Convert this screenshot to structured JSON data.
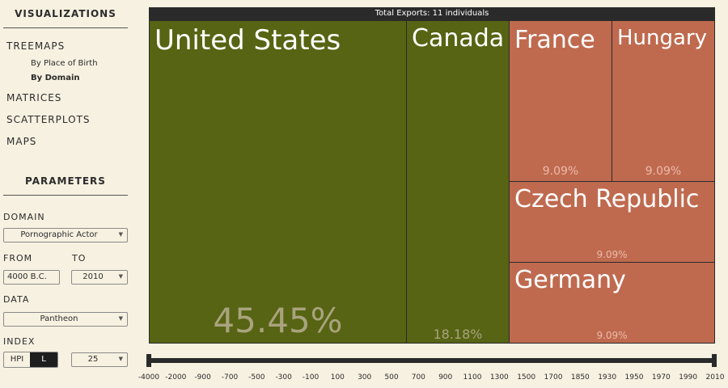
{
  "sidebar": {
    "visualizations_title": "VISUALIZATIONS",
    "nav": {
      "treemaps": "TREEMAPS",
      "sub": [
        "By Place of Birth",
        "By Domain"
      ],
      "matrices": "MATRICES",
      "scatterplots": "SCATTERPLOTS",
      "maps": "MAPS"
    },
    "parameters_title": "PARAMETERS",
    "domain_label": "DOMAIN",
    "domain_value": "Pornographic Actor",
    "from_label": "FROM",
    "to_label": "TO",
    "from_value": "4000 B.C.",
    "to_value": "2010",
    "data_label": "DATA",
    "data_value": "Pantheon",
    "index_label": "INDEX",
    "index_options": [
      "HPI",
      "L"
    ],
    "index_selected": "L",
    "count_value": "25"
  },
  "treemap": {
    "header": "Total Exports: 11 individuals",
    "tiles": [
      {
        "name": "United States",
        "percent": "45.45%",
        "color": "#566413"
      },
      {
        "name": "Canada",
        "percent": "18.18%",
        "color": "#566413"
      },
      {
        "name": "France",
        "percent": "9.09%",
        "color": "#bf6a4f"
      },
      {
        "name": "Hungary",
        "percent": "9.09%",
        "color": "#bf6a4f"
      },
      {
        "name": "Czech Republic",
        "percent": "9.09%",
        "color": "#bf6a4f"
      },
      {
        "name": "Germany",
        "percent": "9.09%",
        "color": "#bf6a4f"
      }
    ]
  },
  "timeline": {
    "ticks": [
      "-4000",
      "-2000",
      "-900",
      "-700",
      "-500",
      "-300",
      "-100",
      "100",
      "300",
      "500",
      "700",
      "900",
      "1100",
      "1300",
      "1500",
      "1700",
      "1850",
      "1930",
      "1950",
      "1970",
      "1990",
      "2010"
    ]
  }
}
